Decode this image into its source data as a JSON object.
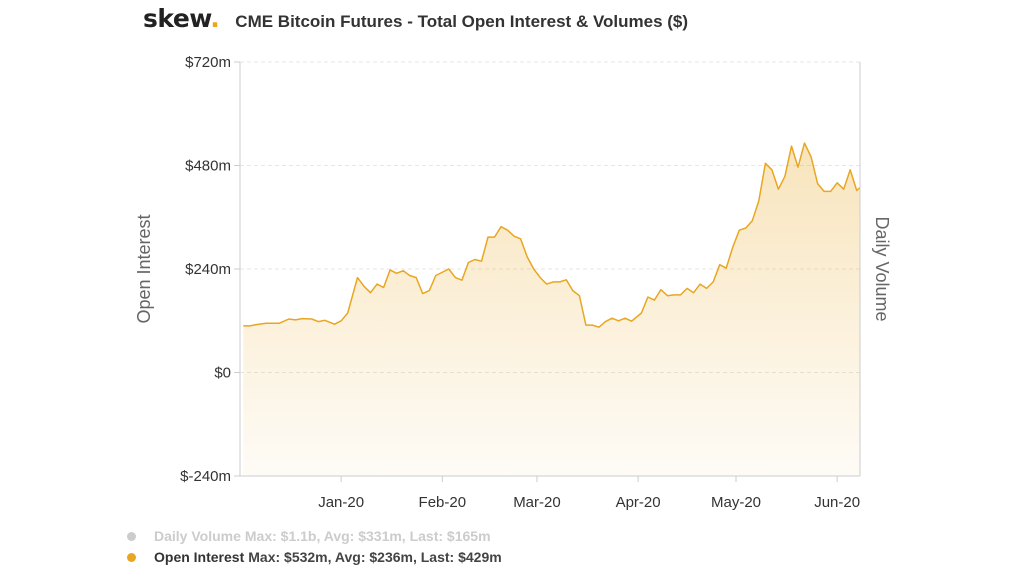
{
  "header": {
    "logo_text": "skew",
    "logo_dot": ".",
    "title": "CME Bitcoin Futures - Total Open Interest & Volumes ($)"
  },
  "legend": {
    "items": [
      {
        "name": "Daily Volume",
        "stats": "Max: $1.1b, Avg: $331m, Last: $165m",
        "color": "#cccccc",
        "active": false
      },
      {
        "name": "Open Interest",
        "stats": "Max: $532m, Avg: $236m, Last: $429m",
        "color": "#e8a621",
        "active": true
      }
    ]
  },
  "chart_data": {
    "type": "area",
    "title": "CME Bitcoin Futures - Total Open Interest & Volumes ($)",
    "ylabel_left": "Open Interest",
    "ylabel_right": "Daily Volume",
    "y_ticks": [
      {
        "value": -240,
        "label": "$-240m"
      },
      {
        "value": 0,
        "label": "$0"
      },
      {
        "value": 240,
        "label": "$240m"
      },
      {
        "value": 480,
        "label": "$480m"
      },
      {
        "value": 720,
        "label": "$720m"
      }
    ],
    "ylim": [
      -240,
      720
    ],
    "x_range": [
      "2019-12-01",
      "2020-06-08"
    ],
    "x_ticks": [
      {
        "date": "2020-01-01",
        "label": "Jan-20"
      },
      {
        "date": "2020-02-01",
        "label": "Feb-20"
      },
      {
        "date": "2020-03-01",
        "label": "Mar-20"
      },
      {
        "date": "2020-04-01",
        "label": "Apr-20"
      },
      {
        "date": "2020-05-01",
        "label": "May-20"
      },
      {
        "date": "2020-06-01",
        "label": "Jun-20"
      }
    ],
    "grid": true,
    "series": [
      {
        "name": "Open Interest",
        "color": "#e8a621",
        "points": [
          [
            "2019-12-02",
            108
          ],
          [
            "2019-12-04",
            108
          ],
          [
            "2019-12-06",
            111
          ],
          [
            "2019-12-09",
            114
          ],
          [
            "2019-12-11",
            114
          ],
          [
            "2019-12-13",
            114
          ],
          [
            "2019-12-16",
            124
          ],
          [
            "2019-12-18",
            122
          ],
          [
            "2019-12-20",
            125
          ],
          [
            "2019-12-23",
            124
          ],
          [
            "2019-12-25",
            118
          ],
          [
            "2019-12-27",
            121
          ],
          [
            "2019-12-30",
            112
          ],
          [
            "2020-01-01",
            120
          ],
          [
            "2020-01-03",
            138
          ],
          [
            "2020-01-06",
            220
          ],
          [
            "2020-01-08",
            200
          ],
          [
            "2020-01-10",
            185
          ],
          [
            "2020-01-12",
            205
          ],
          [
            "2020-01-14",
            197
          ],
          [
            "2020-01-16",
            238
          ],
          [
            "2020-01-18",
            230
          ],
          [
            "2020-01-20",
            236
          ],
          [
            "2020-01-22",
            225
          ],
          [
            "2020-01-24",
            220
          ],
          [
            "2020-01-26",
            183
          ],
          [
            "2020-01-28",
            190
          ],
          [
            "2020-01-30",
            225
          ],
          [
            "2020-02-03",
            240
          ],
          [
            "2020-02-05",
            220
          ],
          [
            "2020-02-07",
            214
          ],
          [
            "2020-02-09",
            255
          ],
          [
            "2020-02-11",
            262
          ],
          [
            "2020-02-13",
            258
          ],
          [
            "2020-02-15",
            314
          ],
          [
            "2020-02-17",
            314
          ],
          [
            "2020-02-19",
            338
          ],
          [
            "2020-02-21",
            330
          ],
          [
            "2020-02-23",
            316
          ],
          [
            "2020-02-25",
            310
          ],
          [
            "2020-02-27",
            268
          ],
          [
            "2020-02-29",
            240
          ],
          [
            "2020-03-02",
            220
          ],
          [
            "2020-03-04",
            205
          ],
          [
            "2020-03-06",
            210
          ],
          [
            "2020-03-08",
            210
          ],
          [
            "2020-03-10",
            215
          ],
          [
            "2020-03-12",
            190
          ],
          [
            "2020-03-14",
            178
          ],
          [
            "2020-03-16",
            110
          ],
          [
            "2020-03-18",
            110
          ],
          [
            "2020-03-20",
            105
          ],
          [
            "2020-03-22",
            118
          ],
          [
            "2020-03-24",
            126
          ],
          [
            "2020-03-26",
            120
          ],
          [
            "2020-03-28",
            126
          ],
          [
            "2020-03-30",
            119
          ],
          [
            "2020-04-02",
            138
          ],
          [
            "2020-04-04",
            175
          ],
          [
            "2020-04-06",
            168
          ],
          [
            "2020-04-08",
            192
          ],
          [
            "2020-04-10",
            178
          ],
          [
            "2020-04-12",
            180
          ],
          [
            "2020-04-14",
            180
          ],
          [
            "2020-04-16",
            195
          ],
          [
            "2020-04-18",
            185
          ],
          [
            "2020-04-20",
            205
          ],
          [
            "2020-04-22",
            195
          ],
          [
            "2020-04-24",
            210
          ],
          [
            "2020-04-26",
            250
          ],
          [
            "2020-04-28",
            242
          ],
          [
            "2020-04-30",
            290
          ],
          [
            "2020-05-02",
            330
          ],
          [
            "2020-05-04",
            335
          ],
          [
            "2020-05-06",
            352
          ],
          [
            "2020-05-08",
            398
          ],
          [
            "2020-05-10",
            485
          ],
          [
            "2020-05-12",
            470
          ],
          [
            "2020-05-14",
            425
          ],
          [
            "2020-05-16",
            455
          ],
          [
            "2020-05-18",
            525
          ],
          [
            "2020-05-20",
            476
          ],
          [
            "2020-05-22",
            532
          ],
          [
            "2020-05-24",
            500
          ],
          [
            "2020-05-26",
            438
          ],
          [
            "2020-05-28",
            420
          ],
          [
            "2020-05-30",
            420
          ],
          [
            "2020-06-01",
            440
          ],
          [
            "2020-06-03",
            425
          ],
          [
            "2020-06-05",
            470
          ],
          [
            "2020-06-07",
            422
          ],
          [
            "2020-06-08",
            429
          ]
        ]
      }
    ]
  }
}
